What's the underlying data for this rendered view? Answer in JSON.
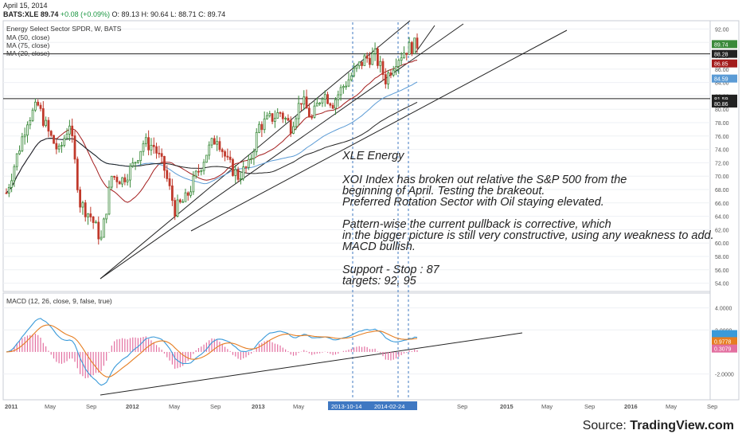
{
  "header": {
    "date": "April 15, 2014",
    "ticker": "BATS:XLE",
    "last": "89.74",
    "change": "+0.08 (+0.09%)",
    "open": "O: 89.13",
    "high": "H: 90.64",
    "low": "L: 88.71",
    "close": "C: 89.74"
  },
  "main_pane": {
    "title": "Energy Select Sector SPDR, W, BATS",
    "studies": [
      "MA (50, close)",
      "MA (75, close)",
      "MA (20, close)"
    ]
  },
  "macd_pane": {
    "title": "MACD (12, 26, close, 9, false, true)"
  },
  "annotation": {
    "heading": "XLE Energy",
    "para1": [
      "XOI Index has broken out relative the S&P 500 from the",
      "beginning of April. Testing the brakeout.",
      "Preferred Rotation Sector with Oil staying elevated."
    ],
    "para2": [
      "Pattern-wise the current pullback is corrective, which",
      "in the bigger picture is still very constructive, using any weakness to add.",
      "MACD bullish."
    ],
    "para3": [
      "Support - Stop : 87",
      "targets: 92, 95"
    ]
  },
  "source": {
    "prefix": "Source: ",
    "brand": "TradingView.com"
  },
  "colors": {
    "up": "#3a8a3a",
    "down": "#c0392b",
    "ma50": "#5b9bd5",
    "ma75": "#222222",
    "ma20": "#a31c1c",
    "macd": "#3a9ad9",
    "signal": "#e67e22",
    "hist": "#e36fa0",
    "grid": "#eef0f4",
    "axis_label": "#555555"
  },
  "chart_data": {
    "type": "candlestick",
    "main_price_axis": {
      "ticks": [
        "92.00",
        "90.00",
        "88.00",
        "86.00",
        "84.00",
        "82.00",
        "80.00",
        "78.00",
        "76.00",
        "74.00",
        "72.00",
        "70.00",
        "68.00",
        "66.00",
        "64.00",
        "62.00",
        "60.00",
        "58.00",
        "56.00",
        "54.00"
      ],
      "range": [
        53,
        93
      ],
      "price_labels": [
        {
          "text": "89.74",
          "value": 89.74,
          "color": "#3a8a3a"
        },
        {
          "text": "88.28",
          "value": 88.28,
          "color": "#222222"
        },
        {
          "text": "86.85",
          "value": 86.85,
          "color": "#a31c1c"
        },
        {
          "text": "84.59",
          "value": 84.59,
          "color": "#5b9bd5"
        },
        {
          "text": "81.59",
          "value": 81.59,
          "color": "#222222"
        },
        {
          "text": "80.86",
          "value": 80.86,
          "color": "#222222"
        }
      ]
    },
    "macd_axis": {
      "ticks": [
        "4.0000",
        "2.0000",
        "-2.0000"
      ],
      "range": [
        -4.2,
        5.2
      ],
      "value_labels": [
        {
          "text": "0.9778",
          "value": 0.9778,
          "color": "#e67e22"
        },
        {
          "text": "0.3079",
          "value": 0.3079,
          "color": "#e36fa0"
        }
      ]
    },
    "x_axis": {
      "labels": [
        "2011",
        "May",
        "Sep",
        "2012",
        "May",
        "Sep",
        "2013",
        "May",
        "2013-10-14",
        "2014-02-24",
        "Sep",
        "2015",
        "May",
        "Sep",
        "2016",
        "May",
        "Sep"
      ],
      "highlighted": [
        "2013-10-14",
        "2014-02-24"
      ]
    },
    "weekly_close_path": [
      {
        "date": "2011-01",
        "close": 67.5
      },
      {
        "date": "2011-02",
        "close": 73.0
      },
      {
        "date": "2011-03",
        "close": 78.5
      },
      {
        "date": "2011-04",
        "close": 80.5
      },
      {
        "date": "2011-05",
        "close": 76.5
      },
      {
        "date": "2011-06",
        "close": 73.5
      },
      {
        "date": "2011-07",
        "close": 78.0
      },
      {
        "date": "2011-08",
        "close": 66.0
      },
      {
        "date": "2011-09",
        "close": 64.0
      },
      {
        "date": "2011-10",
        "close": 60.5
      },
      {
        "date": "2011-11",
        "close": 70.0
      },
      {
        "date": "2011-12",
        "close": 69.5
      },
      {
        "date": "2012-01",
        "close": 71.5
      },
      {
        "date": "2012-02",
        "close": 75.0
      },
      {
        "date": "2012-03",
        "close": 74.5
      },
      {
        "date": "2012-04",
        "close": 71.0
      },
      {
        "date": "2012-05",
        "close": 65.0
      },
      {
        "date": "2012-06",
        "close": 66.5
      },
      {
        "date": "2012-07",
        "close": 70.0
      },
      {
        "date": "2012-08",
        "close": 73.5
      },
      {
        "date": "2012-09",
        "close": 76.0
      },
      {
        "date": "2012-10",
        "close": 72.0
      },
      {
        "date": "2012-11",
        "close": 70.0
      },
      {
        "date": "2012-12",
        "close": 71.5
      },
      {
        "date": "2013-01",
        "close": 77.5
      },
      {
        "date": "2013-02",
        "close": 78.5
      },
      {
        "date": "2013-03",
        "close": 79.5
      },
      {
        "date": "2013-04",
        "close": 77.5
      },
      {
        "date": "2013-05",
        "close": 81.5
      },
      {
        "date": "2013-06",
        "close": 78.5
      },
      {
        "date": "2013-07",
        "close": 82.5
      },
      {
        "date": "2013-08",
        "close": 81.0
      },
      {
        "date": "2013-09",
        "close": 83.5
      },
      {
        "date": "2013-10",
        "close": 85.5
      },
      {
        "date": "2013-11",
        "close": 87.5
      },
      {
        "date": "2013-12",
        "close": 88.0
      },
      {
        "date": "2014-01",
        "close": 84.5
      },
      {
        "date": "2014-02",
        "close": 87.5
      },
      {
        "date": "2014-03",
        "close": 89.0
      },
      {
        "date": "2014-04",
        "close": 89.74
      }
    ]
  }
}
